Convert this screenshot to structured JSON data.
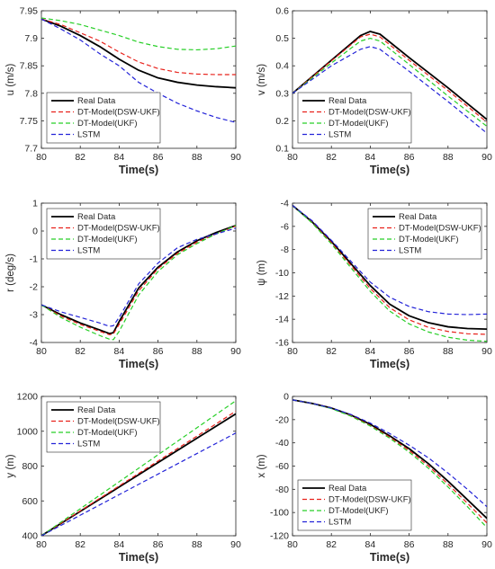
{
  "figure": {
    "styles": {
      "Real Data": {
        "color": "#000000",
        "dash": ""
      },
      "DT-Model(DSW-UKF)": {
        "color": "#e8221b",
        "dash": "5,3"
      },
      "DT-Model(UKF)": {
        "color": "#27cf27",
        "dash": "5,3"
      },
      "LSTM": {
        "color": "#2323d8",
        "dash": "5,3"
      }
    }
  },
  "chart_data": [
    {
      "type": "line",
      "xlabel": "Time(s)",
      "ylabel": "u (m/s)",
      "xlim": [
        80,
        90
      ],
      "ylim": [
        7.7,
        7.95
      ],
      "xticks": [
        80,
        82,
        84,
        86,
        88,
        90
      ],
      "yticks": [
        7.7,
        7.75,
        7.8,
        7.85,
        7.9,
        7.95
      ],
      "legend_position": "bottom-left",
      "series": [
        {
          "name": "Real Data",
          "x": [
            80,
            81,
            82,
            83,
            84,
            85,
            86,
            87,
            88,
            89,
            90
          ],
          "values": [
            7.935,
            7.922,
            7.905,
            7.885,
            7.862,
            7.842,
            7.828,
            7.82,
            7.815,
            7.812,
            7.81
          ]
        },
        {
          "name": "DT-Model(DSW-UKF)",
          "x": [
            80,
            81,
            82,
            83,
            84,
            85,
            86,
            87,
            88,
            89,
            90
          ],
          "values": [
            7.935,
            7.925,
            7.91,
            7.895,
            7.875,
            7.857,
            7.845,
            7.838,
            7.835,
            7.834,
            7.834
          ]
        },
        {
          "name": "DT-Model(UKF)",
          "x": [
            80,
            81,
            82,
            83,
            84,
            85,
            86,
            87,
            88,
            89,
            90
          ],
          "values": [
            7.937,
            7.932,
            7.925,
            7.915,
            7.905,
            7.893,
            7.885,
            7.88,
            7.879,
            7.881,
            7.886
          ]
        },
        {
          "name": "LSTM",
          "x": [
            80,
            81,
            82,
            83,
            84,
            85,
            86,
            87,
            88,
            89,
            90
          ],
          "values": [
            7.935,
            7.917,
            7.897,
            7.872,
            7.85,
            7.82,
            7.8,
            7.782,
            7.768,
            7.756,
            7.747
          ]
        }
      ]
    },
    {
      "type": "line",
      "xlabel": "Time(s)",
      "ylabel": "v (m/s)",
      "xlim": [
        80,
        90
      ],
      "ylim": [
        0.1,
        0.6
      ],
      "xticks": [
        80,
        82,
        84,
        86,
        88,
        90
      ],
      "yticks": [
        0.1,
        0.2,
        0.3,
        0.4,
        0.5,
        0.6
      ],
      "legend_position": "bottom-left",
      "series": [
        {
          "name": "Real Data",
          "x": [
            80,
            82,
            83.5,
            84,
            84.5,
            86,
            88,
            90
          ],
          "values": [
            0.3,
            0.42,
            0.51,
            0.525,
            0.515,
            0.43,
            0.32,
            0.205
          ]
        },
        {
          "name": "DT-Model(DSW-UKF)",
          "x": [
            80,
            82,
            83.5,
            84,
            84.5,
            86,
            88,
            90
          ],
          "values": [
            0.3,
            0.418,
            0.505,
            0.515,
            0.505,
            0.42,
            0.31,
            0.195
          ]
        },
        {
          "name": "DT-Model(UKF)",
          "x": [
            80,
            82,
            83.5,
            84,
            84.5,
            86,
            88,
            90
          ],
          "values": [
            0.3,
            0.41,
            0.49,
            0.5,
            0.49,
            0.405,
            0.29,
            0.18
          ]
        },
        {
          "name": "LSTM",
          "x": [
            80,
            82,
            83.5,
            84,
            84.5,
            86,
            88,
            90
          ],
          "values": [
            0.3,
            0.4,
            0.46,
            0.47,
            0.46,
            0.38,
            0.27,
            0.155
          ]
        }
      ]
    },
    {
      "type": "line",
      "xlabel": "Time(s)",
      "ylabel": "r (deg/s)",
      "xlim": [
        80,
        90
      ],
      "ylim": [
        -4,
        1
      ],
      "xticks": [
        80,
        82,
        84,
        86,
        88,
        90
      ],
      "yticks": [
        -4,
        -3,
        -2,
        -1,
        0,
        1
      ],
      "legend_position": "top-left",
      "series": [
        {
          "name": "Real Data",
          "x": [
            80,
            81,
            82,
            83,
            83.5,
            83.7,
            84,
            84.5,
            85,
            86,
            87,
            88,
            89,
            90
          ],
          "values": [
            -2.65,
            -3.0,
            -3.3,
            -3.55,
            -3.68,
            -3.65,
            -3.25,
            -2.65,
            -2.05,
            -1.3,
            -0.75,
            -0.35,
            -0.05,
            0.2
          ]
        },
        {
          "name": "DT-Model(DSW-UKF)",
          "x": [
            80,
            81,
            82,
            83,
            83.5,
            83.7,
            84,
            84.5,
            85,
            86,
            87,
            88,
            89,
            90
          ],
          "values": [
            -2.65,
            -3.05,
            -3.35,
            -3.6,
            -3.72,
            -3.7,
            -3.35,
            -2.75,
            -2.15,
            -1.35,
            -0.8,
            -0.4,
            -0.1,
            0.18
          ]
        },
        {
          "name": "DT-Model(UKF)",
          "x": [
            80,
            81,
            82,
            83,
            83.5,
            83.7,
            84,
            84.5,
            85,
            86,
            87,
            88,
            89,
            90
          ],
          "values": [
            -2.65,
            -3.1,
            -3.45,
            -3.75,
            -3.88,
            -3.9,
            -3.6,
            -2.95,
            -2.3,
            -1.45,
            -0.85,
            -0.45,
            -0.1,
            0.2
          ]
        },
        {
          "name": "LSTM",
          "x": [
            80,
            81,
            82,
            83,
            83.5,
            83.7,
            84,
            84.5,
            85,
            86,
            87,
            88,
            89,
            90
          ],
          "values": [
            -2.65,
            -2.9,
            -3.1,
            -3.3,
            -3.42,
            -3.4,
            -3.1,
            -2.5,
            -1.9,
            -1.15,
            -0.6,
            -0.3,
            -0.1,
            0.1
          ]
        }
      ]
    },
    {
      "type": "line",
      "xlabel": "Time(s)",
      "ylabel": "ψ (m)",
      "xlim": [
        80,
        90
      ],
      "ylim": [
        -16,
        -4
      ],
      "xticks": [
        80,
        82,
        84,
        86,
        88,
        90
      ],
      "yticks": [
        -16,
        -14,
        -12,
        -10,
        -8,
        -6,
        -4
      ],
      "legend_position": "top-right",
      "series": [
        {
          "name": "Real Data",
          "x": [
            80,
            81,
            82,
            83,
            84,
            85,
            86,
            87,
            88,
            89,
            90
          ],
          "values": [
            -4.2,
            -5.6,
            -7.3,
            -9.2,
            -11.1,
            -12.7,
            -13.7,
            -14.3,
            -14.65,
            -14.8,
            -14.85
          ]
        },
        {
          "name": "DT-Model(DSW-UKF)",
          "x": [
            80,
            81,
            82,
            83,
            84,
            85,
            86,
            87,
            88,
            89,
            90
          ],
          "values": [
            -4.2,
            -5.65,
            -7.4,
            -9.35,
            -11.35,
            -13.0,
            -14.05,
            -14.7,
            -15.05,
            -15.25,
            -15.3
          ]
        },
        {
          "name": "DT-Model(UKF)",
          "x": [
            80,
            81,
            82,
            83,
            84,
            85,
            86,
            87,
            88,
            89,
            90
          ],
          "values": [
            -4.2,
            -5.7,
            -7.5,
            -9.55,
            -11.6,
            -13.3,
            -14.4,
            -15.1,
            -15.55,
            -15.8,
            -15.9
          ]
        },
        {
          "name": "LSTM",
          "x": [
            80,
            81,
            82,
            83,
            84,
            85,
            86,
            87,
            88,
            89,
            90
          ],
          "values": [
            -4.2,
            -5.5,
            -7.2,
            -9.0,
            -10.8,
            -12.1,
            -12.9,
            -13.35,
            -13.55,
            -13.6,
            -13.55
          ]
        }
      ]
    },
    {
      "type": "line",
      "xlabel": "Time(s)",
      "ylabel": "y (m)",
      "xlim": [
        80,
        90
      ],
      "ylim": [
        400,
        1200
      ],
      "xticks": [
        80,
        82,
        84,
        86,
        88,
        90
      ],
      "yticks": [
        400,
        600,
        800,
        1000,
        1200
      ],
      "legend_position": "top-left",
      "series": [
        {
          "name": "Real Data",
          "x": [
            80,
            82,
            84,
            86,
            88,
            90
          ],
          "values": [
            400,
            540,
            680,
            820,
            960,
            1100
          ]
        },
        {
          "name": "DT-Model(DSW-UKF)",
          "x": [
            80,
            82,
            84,
            86,
            88,
            90
          ],
          "values": [
            400,
            543,
            686,
            829,
            972,
            1115
          ]
        },
        {
          "name": "DT-Model(UKF)",
          "x": [
            80,
            82,
            84,
            86,
            88,
            90
          ],
          "values": [
            400,
            555,
            710,
            865,
            1020,
            1175
          ]
        },
        {
          "name": "LSTM",
          "x": [
            80,
            82,
            84,
            86,
            88,
            90
          ],
          "values": [
            400,
            518,
            636,
            754,
            872,
            990
          ]
        }
      ]
    },
    {
      "type": "line",
      "xlabel": "Time(s)",
      "ylabel": "x (m)",
      "xlim": [
        80,
        90
      ],
      "ylim": [
        -120,
        0
      ],
      "xticks": [
        80,
        82,
        84,
        86,
        88,
        90
      ],
      "yticks": [
        -120,
        -100,
        -80,
        -60,
        -40,
        -20,
        0
      ],
      "legend_position": "bottom-left",
      "series": [
        {
          "name": "Real Data",
          "x": [
            80,
            81,
            82,
            83,
            84,
            85,
            86,
            87,
            88,
            89,
            90
          ],
          "values": [
            -3,
            -6,
            -10,
            -16,
            -24,
            -34,
            -45,
            -58,
            -73,
            -89,
            -105
          ]
        },
        {
          "name": "DT-Model(DSW-UKF)",
          "x": [
            80,
            81,
            82,
            83,
            84,
            85,
            86,
            87,
            88,
            89,
            90
          ],
          "values": [
            -3,
            -6,
            -10,
            -16.5,
            -25,
            -35,
            -46.5,
            -60,
            -75.5,
            -92,
            -109
          ]
        },
        {
          "name": "DT-Model(UKF)",
          "x": [
            80,
            81,
            82,
            83,
            84,
            85,
            86,
            87,
            88,
            89,
            90
          ],
          "values": [
            -3,
            -6,
            -10.5,
            -17,
            -25.5,
            -36,
            -48,
            -62,
            -78,
            -95,
            -113
          ]
        },
        {
          "name": "LSTM",
          "x": [
            80,
            81,
            82,
            83,
            84,
            85,
            86,
            87,
            88,
            89,
            90
          ],
          "values": [
            -3,
            -6,
            -10,
            -15.5,
            -23,
            -32,
            -42,
            -53,
            -66,
            -80,
            -95
          ]
        }
      ]
    }
  ]
}
